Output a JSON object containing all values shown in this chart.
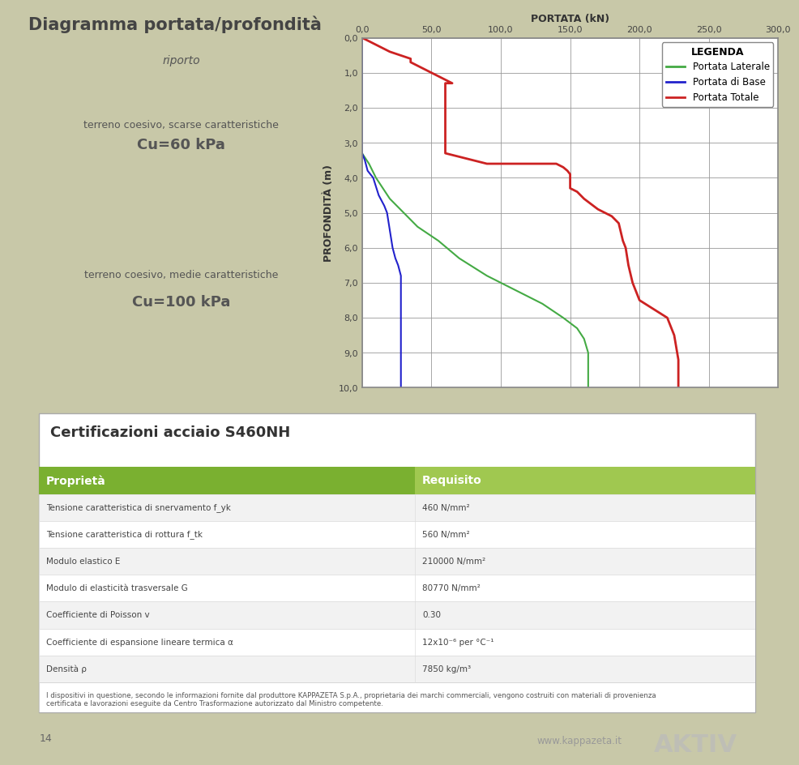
{
  "title": "Diagramma portata/profondità",
  "top_bg": "#ffffff",
  "bottom_bg": "#6aaa30",
  "page_bg": "#ccccaa",
  "left_panel": {
    "riporto_color": "#f0b020",
    "riporto_label": "riporto",
    "layer1_color": "#f5c840",
    "layer1_text1": "terreno coesivo, scarse caratteristiche",
    "layer1_text2": "Cu=60 kPa",
    "layer2_color": "#f8e0a0",
    "layer2_text1": "terreno coesivo, medie caratteristiche",
    "layer2_text2": "Cu=100 kPa"
  },
  "chart": {
    "xlabel": "PORTATA (kN)",
    "ylabel": "PROFONDITÀ (m)",
    "xmin": 0,
    "xmax": 300,
    "ymin": 0,
    "ymax": 10,
    "xticks": [
      0.0,
      50.0,
      100.0,
      150.0,
      200.0,
      250.0,
      300.0
    ],
    "yticks": [
      0.0,
      1.0,
      2.0,
      3.0,
      4.0,
      5.0,
      6.0,
      7.0,
      8.0,
      9.0,
      10.0
    ],
    "grid_color": "#999999",
    "lateral_color": "#44aa44",
    "base_color": "#2222cc",
    "total_color": "#cc2222",
    "legend_title": "LEGENDA",
    "legend_items": [
      "Portata Laterale",
      "Portata di Base",
      "Portata Totale"
    ]
  },
  "lateral_x": [
    0,
    0,
    0,
    0,
    0,
    0,
    0,
    0,
    0,
    0,
    0,
    0,
    0,
    0,
    0,
    0,
    0,
    5,
    10,
    15,
    20,
    30,
    40,
    55,
    70,
    90,
    110,
    130,
    145,
    155,
    160,
    163,
    163,
    163
  ],
  "lateral_y": [
    0,
    0.2,
    0.4,
    0.6,
    0.8,
    1.0,
    1.2,
    1.4,
    1.6,
    1.8,
    2.0,
    2.2,
    2.4,
    2.6,
    2.8,
    3.0,
    3.3,
    3.6,
    4.0,
    4.3,
    4.6,
    5.0,
    5.4,
    5.8,
    6.3,
    6.8,
    7.2,
    7.6,
    8.0,
    8.3,
    8.6,
    9.0,
    9.5,
    10.0
  ],
  "base_x": [
    0,
    0,
    0,
    0,
    0,
    0,
    2,
    4,
    8,
    12,
    16,
    18,
    20,
    22,
    24,
    26,
    28,
    28,
    28,
    28,
    28,
    28,
    28,
    28,
    28,
    28,
    28,
    28
  ],
  "base_y": [
    0,
    0.5,
    1.0,
    1.5,
    2.0,
    3.3,
    3.5,
    3.8,
    4.0,
    4.5,
    4.8,
    5.0,
    5.5,
    6.0,
    6.3,
    6.5,
    6.8,
    7.0,
    7.5,
    8.0,
    8.2,
    8.5,
    8.8,
    9.0,
    9.2,
    9.5,
    9.8,
    10.0
  ],
  "total_x": [
    0,
    5,
    10,
    20,
    35,
    35,
    40,
    45,
    50,
    55,
    60,
    65,
    60,
    60,
    70,
    80,
    90,
    100,
    110,
    120,
    130,
    140,
    145,
    148,
    150,
    150,
    155,
    160,
    170,
    175,
    180,
    185,
    188,
    190,
    192,
    195,
    200,
    220,
    225,
    228,
    228
  ],
  "total_y": [
    0,
    0.1,
    0.2,
    0.4,
    0.6,
    0.7,
    0.8,
    0.9,
    1.0,
    1.1,
    1.2,
    1.3,
    1.3,
    3.3,
    3.4,
    3.5,
    3.6,
    3.6,
    3.6,
    3.6,
    3.6,
    3.6,
    3.7,
    3.8,
    3.9,
    4.3,
    4.4,
    4.6,
    4.9,
    5.0,
    5.1,
    5.3,
    5.8,
    6.0,
    6.5,
    7.0,
    7.5,
    8.0,
    8.5,
    9.2,
    10.0
  ],
  "table": {
    "title": "Certificazioni acciaio S460NH",
    "header_bg_left": "#7ab030",
    "header_bg_right": "#a0c850",
    "header_text_color": "#ffffff",
    "row_bg_odd": "#ffffff",
    "row_bg_even": "#f2f2f2",
    "col1_header": "Proprietà",
    "col2_header": "Requisito",
    "rows": [
      [
        "Tensione caratteristica di snervamento f_yk",
        "460 N/mm²"
      ],
      [
        "Tensione caratteristica di rottura f_tk",
        "560 N/mm²"
      ],
      [
        "Modulo elastico E",
        "210000 N/mm²"
      ],
      [
        "Modulo di elasticità trasversale G",
        "80770 N/mm²"
      ],
      [
        "Coefficiente di Poisson v",
        "0.30"
      ],
      [
        "Coefficiente di espansione lineare termica α",
        "12x10⁻⁶ per °C⁻¹"
      ],
      [
        "Densità ρ",
        "7850 kg/m³"
      ]
    ],
    "footnote": "I dispositivi in questione, secondo le informazioni fornite dal produttore KAPPAZETA S.p.A., proprietaria dei marchi commerciali, vengono costruiti con materiali di provenienza\ncertificata e lavorazioni eseguite da Centro Trasformazione autorizzato dal Ministro competente.",
    "page_number": "14",
    "website": "www.kappazeta.it",
    "brand": "AKTIV"
  }
}
